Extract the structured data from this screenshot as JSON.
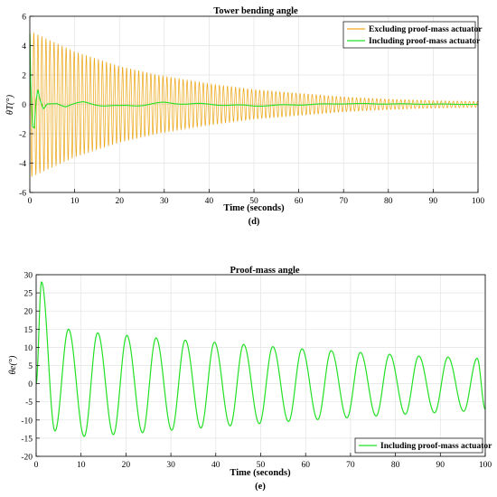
{
  "colors": {
    "orange": "#EDA91E",
    "green": "#22E024",
    "grid": "#E3E3E3"
  },
  "chart_data": [
    {
      "type": "line",
      "title": "Tower bending angle",
      "xlabel": "Time (seconds)",
      "ylabel": "θT(°)",
      "caption": "(d)",
      "xlim": [
        0,
        100
      ],
      "ylim": [
        -6,
        6
      ],
      "xticks": [
        0,
        10,
        20,
        30,
        40,
        50,
        60,
        70,
        80,
        90,
        100
      ],
      "yticks": [
        -6,
        -4,
        -2,
        0,
        2,
        4,
        6
      ],
      "grid": true,
      "legend_position": "top-right",
      "series": [
        {
          "name": "Excluding proof-mass actuator",
          "color": "#EDA91E",
          "description": "decaying oscillation, period ~0.9 s",
          "x": [
            0,
            10,
            20,
            30,
            40,
            50,
            60,
            70,
            80,
            90,
            100
          ],
          "envelope": [
            5.0,
            3.6,
            2.6,
            1.9,
            1.4,
            1.0,
            0.75,
            0.5,
            0.35,
            0.25,
            0.2
          ]
        },
        {
          "name": "Including proof-mass actuator",
          "color": "#22E024",
          "description": "initial spike then small slow oscillation",
          "x": [
            0,
            0.2,
            0.6,
            1.0,
            1.4,
            1.8,
            2.3,
            3.0,
            4.0,
            6.0,
            8.0,
            12,
            20,
            30,
            50,
            70,
            100
          ],
          "y": [
            4.8,
            1.5,
            -1.5,
            -1.6,
            0.3,
            1.0,
            0.3,
            -0.3,
            0.0,
            0.15,
            -0.1,
            0.1,
            -0.15,
            0.1,
            -0.1,
            0.05,
            0.0
          ]
        }
      ]
    },
    {
      "type": "line",
      "title": "Proof-mass angle",
      "xlabel": "Time (seconds)",
      "ylabel": "θe(°)",
      "caption": "(e)",
      "xlim": [
        0,
        100
      ],
      "ylim": [
        -20,
        30
      ],
      "xticks": [
        0,
        10,
        20,
        30,
        40,
        50,
        60,
        70,
        80,
        90,
        100
      ],
      "yticks": [
        -20,
        -15,
        -10,
        -5,
        0,
        5,
        10,
        15,
        20,
        25,
        30
      ],
      "grid": true,
      "legend_position": "bottom-right",
      "series": [
        {
          "name": "Including proof-mass actuator",
          "color": "#22E024",
          "description": "damped oscillation, period ~6.5 s",
          "peaks": [
            [
              1.2,
              28
            ],
            [
              7.2,
              15
            ],
            [
              13.7,
              14
            ],
            [
              20.2,
              13.3
            ],
            [
              26.7,
              12.6
            ],
            [
              33.2,
              12
            ],
            [
              39.7,
              11.4
            ],
            [
              46.2,
              10.8
            ],
            [
              52.7,
              10.2
            ],
            [
              59.2,
              9.6
            ],
            [
              65.7,
              9.1
            ],
            [
              72.2,
              8.6
            ],
            [
              78.7,
              8.1
            ],
            [
              85.2,
              7.6
            ],
            [
              91.7,
              7.3
            ],
            [
              98.2,
              7
            ]
          ],
          "troughs": [
            [
              4.2,
              -13
            ],
            [
              10.7,
              -14.5
            ],
            [
              17.2,
              -14
            ],
            [
              23.7,
              -13.5
            ],
            [
              30.2,
              -12.8
            ],
            [
              36.7,
              -12.2
            ],
            [
              43.2,
              -11.6
            ],
            [
              49.7,
              -11
            ],
            [
              56.2,
              -10.4
            ],
            [
              62.7,
              -9.9
            ],
            [
              69.2,
              -9.4
            ],
            [
              75.7,
              -8.9
            ],
            [
              82.2,
              -8.4
            ],
            [
              88.7,
              -8
            ],
            [
              95.2,
              -7.6
            ]
          ],
          "y_at_100": -7
        }
      ]
    }
  ]
}
